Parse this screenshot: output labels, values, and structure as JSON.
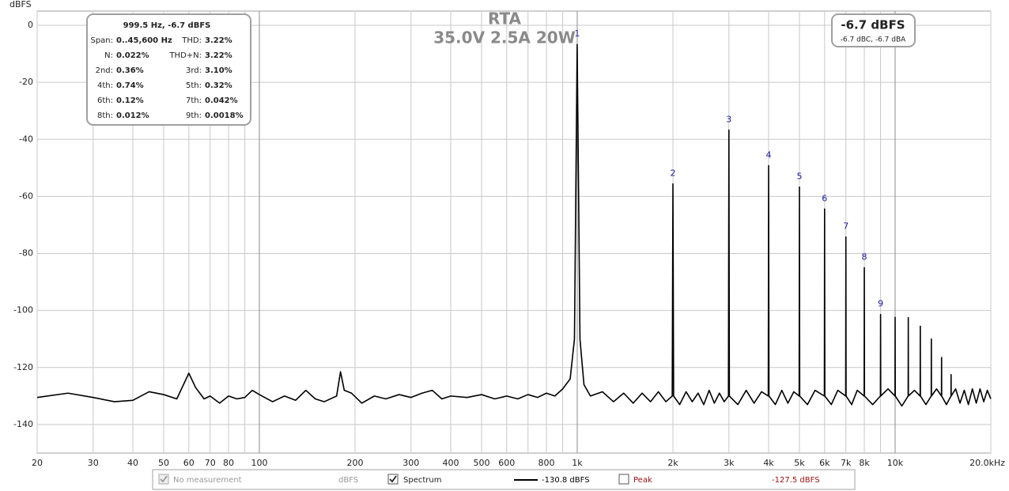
{
  "chart_data": {
    "type": "line",
    "title": "RTA",
    "subtitle": "35.0V 2.5A 20W",
    "y_label": "dBFS",
    "xscale": "log",
    "xlim": [
      20,
      20000
    ],
    "ylim": [
      -150,
      5
    ],
    "grid": true,
    "xticks": [
      20,
      30,
      40,
      50,
      60,
      70,
      80,
      100,
      200,
      300,
      400,
      500,
      600,
      800,
      {
        "value": 1000,
        "label": "1k"
      },
      {
        "value": 2000,
        "label": "2k"
      },
      {
        "value": 3000,
        "label": "3k"
      },
      {
        "value": 4000,
        "label": "4k"
      },
      {
        "value": 5000,
        "label": "5k"
      },
      {
        "value": 6000,
        "label": "6k"
      },
      {
        "value": 7000,
        "label": "7k"
      },
      {
        "value": 8000,
        "label": "8k"
      },
      {
        "value": 10000,
        "label": "10k"
      },
      {
        "value": 20000,
        "label": "20.0kHz"
      }
    ],
    "xminor": [
      90,
      700,
      900,
      9000
    ],
    "yticks": [
      0,
      -20,
      -40,
      -60,
      -80,
      -100,
      -120,
      -140
    ],
    "series": [
      {
        "name": "Spectrum",
        "color": "#000000",
        "x": [
          20,
          25,
          30,
          35,
          40,
          45,
          50,
          55,
          60,
          63,
          67,
          70,
          75,
          80,
          85,
          90,
          95,
          100,
          110,
          120,
          130,
          140,
          150,
          160,
          175,
          180,
          185,
          195,
          210,
          230,
          250,
          275,
          300,
          325,
          350,
          375,
          400,
          450,
          500,
          550,
          600,
          650,
          700,
          750,
          800,
          850,
          900,
          950,
          980,
          999.5,
          1020,
          1050,
          1100,
          1200,
          1300,
          1400,
          1500,
          1600,
          1700,
          1800,
          1900,
          1990,
          2000,
          2010,
          2100,
          2200,
          2300,
          2400,
          2500,
          2600,
          2700,
          2800,
          2900,
          2990,
          3000,
          3010,
          3200,
          3400,
          3600,
          3800,
          3990,
          4000,
          4010,
          4200,
          4400,
          4600,
          4800,
          4990,
          5000,
          5010,
          5300,
          5600,
          5990,
          6000,
          6010,
          6300,
          6600,
          6990,
          7000,
          7010,
          7300,
          7600,
          7990,
          8000,
          8010,
          8500,
          8990,
          9000,
          9010,
          9500,
          9990,
          10000,
          10010,
          10500,
          10990,
          11000,
          11010,
          11500,
          11990,
          12000,
          12010,
          12500,
          12990,
          13000,
          13010,
          13500,
          13990,
          14000,
          14010,
          14500,
          14990,
          15000,
          15010,
          15500,
          16000,
          16500,
          17000,
          17500,
          18000,
          18500,
          19000,
          19500,
          20000
        ],
        "values": [
          -130.5,
          -129,
          -130.5,
          -132,
          -131.5,
          -128.5,
          -129.5,
          -131,
          -122,
          -127,
          -131,
          -130,
          -132.5,
          -130,
          -131,
          -130.5,
          -128,
          -129.5,
          -132,
          -130,
          -131.5,
          -128,
          -131,
          -132,
          -130,
          -121.5,
          -128,
          -129,
          -132.5,
          -130,
          -131,
          -129.5,
          -130.5,
          -129,
          -128,
          -131,
          -130,
          -130.5,
          -129.5,
          -131,
          -130,
          -131,
          -129.5,
          -130.5,
          -129,
          -130,
          -127.5,
          -124,
          -110,
          -6.7,
          -110,
          -126,
          -130,
          -128.5,
          -132,
          -129,
          -132.5,
          -129,
          -132,
          -128.5,
          -132,
          -130,
          -55.6,
          -130,
          -133,
          -128.5,
          -132,
          -129,
          -133,
          -128,
          -132.5,
          -129,
          -132,
          -130,
          -36.7,
          -130,
          -133,
          -128,
          -132.5,
          -128.5,
          -130,
          -49.2,
          -130,
          -133,
          -128,
          -132.5,
          -128.5,
          -130,
          -56.7,
          -130,
          -133,
          -128,
          -130,
          -64.4,
          -130,
          -133,
          -128,
          -130,
          -74.2,
          -130,
          -133,
          -128,
          -130,
          -85,
          -130,
          -133,
          -130,
          -101.4,
          -130,
          -127.5,
          -130,
          -102.4,
          -130,
          -133.5,
          -130,
          -102.5,
          -130,
          -128,
          -130,
          -105.5,
          -130,
          -133,
          -130,
          -110,
          -130,
          -127.5,
          -130,
          -116.5,
          -130,
          -133,
          -130,
          -122.5,
          -130,
          -127.5,
          -132.5,
          -128,
          -133,
          -127.5,
          -132.5,
          -127.5,
          -132,
          -128,
          -131
        ]
      }
    ],
    "harmonic_labels": [
      {
        "text": "1",
        "x": 999.5,
        "y": -6.7
      },
      {
        "text": "2",
        "x": 2000,
        "y": -55.6
      },
      {
        "text": "3",
        "x": 3000,
        "y": -36.7
      },
      {
        "text": "4",
        "x": 4000,
        "y": -49.2
      },
      {
        "text": "5",
        "x": 5000,
        "y": -56.7
      },
      {
        "text": "6",
        "x": 6000,
        "y": -64.4
      },
      {
        "text": "7",
        "x": 7000,
        "y": -74.2
      },
      {
        "text": "8",
        "x": 8000,
        "y": -85
      },
      {
        "text": "9",
        "x": 9000,
        "y": -101.4
      }
    ],
    "info_box": {
      "header": "999.5 Hz, -6.7 dBFS",
      "rows": [
        [
          "Span:",
          "0..45,600 Hz",
          "THD:",
          "3.22%"
        ],
        [
          "N:",
          "0.022%",
          "THD+N:",
          "3.22%"
        ],
        [
          "2nd:",
          "0.36%",
          "3rd:",
          "3.10%"
        ],
        [
          "4th:",
          "0.74%",
          "5th:",
          "0.32%"
        ],
        [
          "6th:",
          "0.12%",
          "7th:",
          "0.042%"
        ],
        [
          "8th:",
          "0.012%",
          "9th:",
          "0.0018%"
        ]
      ]
    },
    "level_box": {
      "main": "-6.7 dBFS",
      "sub": "-6.7 dBC, -6.7 dBA"
    },
    "legend_bar": [
      {
        "label": "No measurement",
        "unit": "dBFS",
        "checked": true,
        "enabled": false
      },
      {
        "label": "Spectrum",
        "value": "-130.8 dBFS",
        "checked": true,
        "enabled": true,
        "color": "#000000"
      },
      {
        "label": "Peak",
        "value": "-127.5 dBFS",
        "checked": false,
        "enabled": true,
        "color": "#a01010"
      }
    ]
  }
}
